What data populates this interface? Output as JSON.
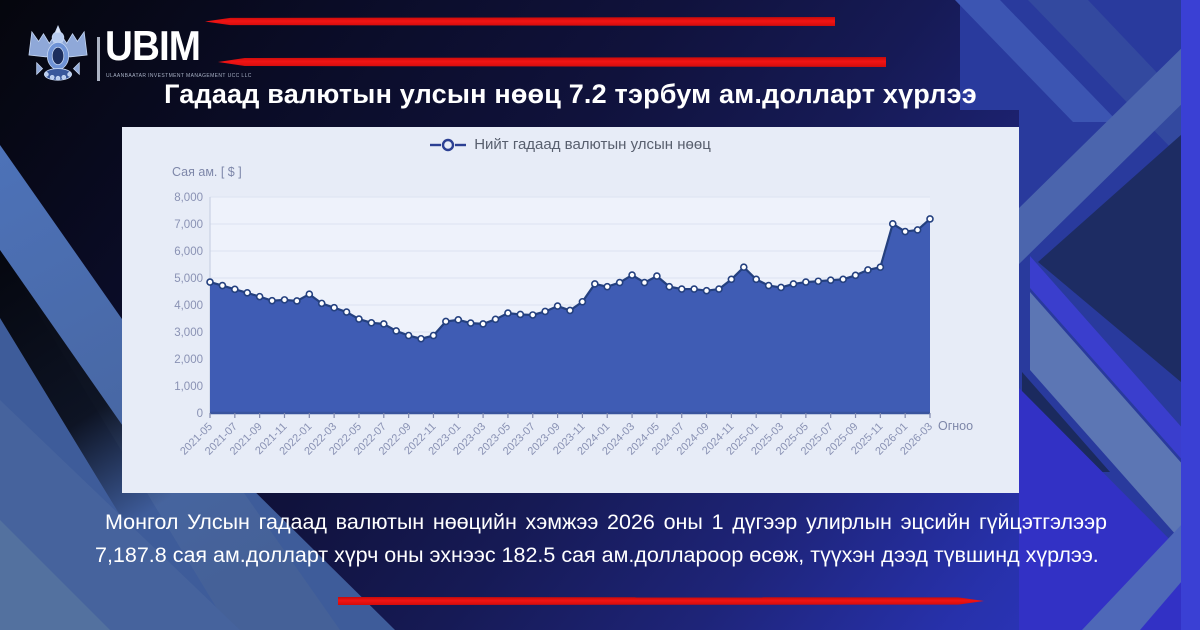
{
  "logo": {
    "brand": "UBIM",
    "tagline": "ULAANBAATAR INVESTMENT MANAGEMENT UCC LLC",
    "emblem": "garuda-crest-icon"
  },
  "header": {
    "title": "Гадаад валютын улсын нөөц 7.2 тэрбум ам.долларт хүрлээ"
  },
  "body": {
    "text": "Монгол Улсын гадаад валютын нөөцийн хэмжээ 2026 оны 1 дүгээр улирлын эцсийн гүйцэтгэлээр 7,187.8 сая ам.долларт хүрч оны эхнээс 182.5 сая ам.доллароор өсөж, түүхэн дээд түвшинд хүрлээ."
  },
  "colors": {
    "accent_red": "#e8100e",
    "background_dark": "#0a0c26",
    "background_bright_blue": "#2f38c8",
    "panel_background": "#e7ecf7",
    "title_text": "#ffffff"
  },
  "chart_data": {
    "type": "area",
    "series_name": "Нийт гадаад валютын улсын нөөц",
    "unit_label": "Сая ам. [ $ ]",
    "x_axis_label": "Огноо",
    "ylim": [
      0,
      8000
    ],
    "ytick_step": 1000,
    "x_tick_every": 2,
    "grid": true,
    "legend_position": "top-center",
    "colors": {
      "fill": "#3f5cb4",
      "line": "#24407f",
      "marker_fill": "#ffffff",
      "grid": "#dce3f0",
      "plot_bg": "#eef2fb",
      "axis_text": "#8a92b4",
      "axis_line": "#39549e",
      "tick": "#8089ad",
      "plot_border": "#c3cbdf"
    },
    "x": [
      "2021-05",
      "2021-06",
      "2021-07",
      "2021-08",
      "2021-09",
      "2021-10",
      "2021-11",
      "2021-12",
      "2022-01",
      "2022-02",
      "2022-03",
      "2022-04",
      "2022-05",
      "2022-06",
      "2022-07",
      "2022-08",
      "2022-09",
      "2022-10",
      "2022-11",
      "2022-12",
      "2023-01",
      "2023-02",
      "2023-03",
      "2023-04",
      "2023-05",
      "2023-06",
      "2023-07",
      "2023-08",
      "2023-09",
      "2023-10",
      "2023-11",
      "2023-12",
      "2024-01",
      "2024-02",
      "2024-03",
      "2024-04",
      "2024-05",
      "2024-06",
      "2024-07",
      "2024-08",
      "2024-09",
      "2024-10",
      "2024-11",
      "2024-12",
      "2025-01",
      "2025-02",
      "2025-03",
      "2025-04",
      "2025-05",
      "2025-06",
      "2025-07",
      "2025-08",
      "2025-09",
      "2025-10",
      "2025-11",
      "2025-12",
      "2026-01",
      "2026-02",
      "2026-03"
    ],
    "values": [
      4850,
      4720,
      4580,
      4450,
      4310,
      4160,
      4190,
      4150,
      4400,
      4060,
      3900,
      3740,
      3480,
      3340,
      3300,
      3040,
      2870,
      2750,
      2870,
      3390,
      3450,
      3330,
      3300,
      3470,
      3700,
      3650,
      3630,
      3760,
      3960,
      3800,
      4120,
      4780,
      4680,
      4830,
      5110,
      4830,
      5070,
      4680,
      4590,
      4590,
      4530,
      4590,
      4950,
      5400,
      4950,
      4720,
      4650,
      4780,
      4850,
      4880,
      4920,
      4950,
      5100,
      5300,
      5400,
      7005.3,
      6720,
      6780,
      7187.8
    ]
  }
}
